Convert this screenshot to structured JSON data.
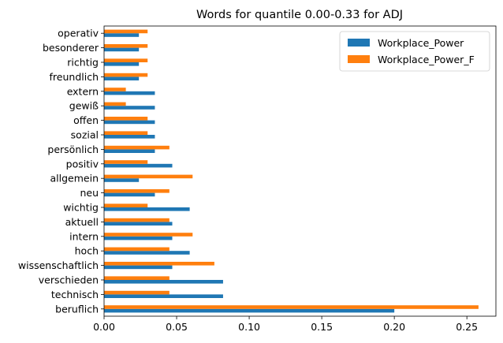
{
  "chart_data": {
    "type": "bar",
    "orientation": "horizontal",
    "title": "Words for quantile 0.00-0.33 for ADJ",
    "xlabel": "",
    "ylabel": "",
    "xlim": [
      0,
      0.27
    ],
    "xticks": [
      "0.00",
      "0.05",
      "0.10",
      "0.15",
      "0.20",
      "0.25"
    ],
    "xtick_values": [
      0,
      0.05,
      0.1,
      0.15,
      0.2,
      0.25
    ],
    "grid": false,
    "legend_position": "top-right",
    "categories": [
      "beruflich",
      "technisch",
      "verschieden",
      "wissenschaftlich",
      "hoch",
      "intern",
      "aktuell",
      "wichtig",
      "neu",
      "allgemein",
      "positiv",
      "persönlich",
      "sozial",
      "offen",
      "gewiß",
      "extern",
      "freundlich",
      "richtig",
      "besonderer",
      "operativ"
    ],
    "series": [
      {
        "name": "Workplace_Power",
        "color": "#1f77b4",
        "values": [
          0.2,
          0.082,
          0.082,
          0.047,
          0.059,
          0.047,
          0.047,
          0.059,
          0.035,
          0.024,
          0.047,
          0.035,
          0.035,
          0.035,
          0.035,
          0.035,
          0.024,
          0.024,
          0.024,
          0.024
        ]
      },
      {
        "name": "Workplace_Power_F",
        "color": "#ff7f0e",
        "values": [
          0.258,
          0.045,
          0.045,
          0.076,
          0.045,
          0.061,
          0.045,
          0.03,
          0.045,
          0.061,
          0.03,
          0.045,
          0.03,
          0.03,
          0.015,
          0.015,
          0.03,
          0.03,
          0.03,
          0.03
        ]
      }
    ]
  }
}
